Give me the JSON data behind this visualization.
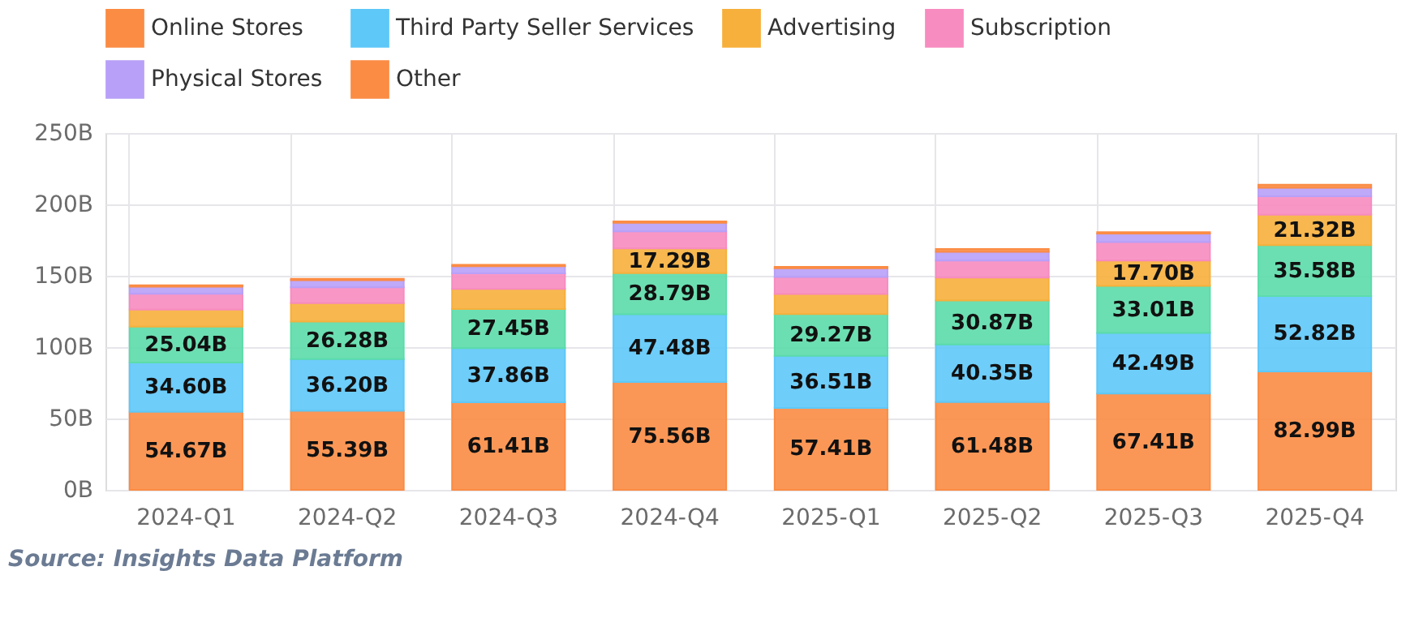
{
  "chart_data": {
    "type": "bar",
    "stacked": true,
    "categories": [
      "2024-Q1",
      "2024-Q2",
      "2024-Q3",
      "2024-Q4",
      "2025-Q1",
      "2025-Q2",
      "2025-Q3",
      "2025-Q4"
    ],
    "series": [
      {
        "name": "Online Stores",
        "color": "#fb8c44",
        "values": [
          54.67,
          55.39,
          61.41,
          75.56,
          57.41,
          61.48,
          67.41,
          82.99
        ],
        "value_labels": [
          "54.67B",
          "55.39B",
          "61.41B",
          "75.56B",
          "57.41B",
          "61.48B",
          "67.41B",
          "82.99B"
        ]
      },
      {
        "name": "Third Party Seller Services",
        "color": "#5ec8f8",
        "values": [
          34.6,
          36.2,
          37.86,
          47.48,
          36.51,
          40.35,
          42.49,
          52.82
        ],
        "value_labels": [
          "34.60B",
          "36.20B",
          "37.86B",
          "47.48B",
          "36.51B",
          "40.35B",
          "42.49B",
          "52.82B"
        ]
      },
      {
        "color": "#5cdcaa",
        "values": [
          25.04,
          26.28,
          27.45,
          28.79,
          29.27,
          30.87,
          33.01,
          35.58
        ],
        "value_labels": [
          "25.04B",
          "26.28B",
          "27.45B",
          "28.79B",
          "29.27B",
          "30.87B",
          "33.01B",
          "35.58B"
        ]
      },
      {
        "name": "Advertising",
        "color": "#f7b03c",
        "values": [
          12,
          13,
          14,
          17.29,
          14,
          16,
          17.7,
          21.32
        ],
        "value_labels": [
          null,
          null,
          null,
          "17.29B",
          null,
          null,
          "17.70B",
          "21.32B"
        ]
      },
      {
        "name": "Subscription",
        "color": "#f78cc0",
        "values": [
          11,
          11,
          11,
          12,
          12,
          12,
          13,
          13
        ]
      },
      {
        "name": "Physical Stores",
        "color": "#b8a0f8",
        "values": [
          5,
          5,
          5,
          6,
          6,
          6,
          6,
          6
        ]
      },
      {
        "name": "Other",
        "color": "#fb8c44",
        "values": [
          1,
          1,
          1,
          1,
          1,
          2,
          1,
          2
        ]
      }
    ],
    "ylim": [
      0,
      250
    ],
    "yticks": [
      {
        "value": 0,
        "label": "0B"
      },
      {
        "value": 50,
        "label": "50B"
      },
      {
        "value": 100,
        "label": "100B"
      },
      {
        "value": 150,
        "label": "150B"
      },
      {
        "value": 200,
        "label": "200B"
      },
      {
        "value": 250,
        "label": "250B"
      }
    ],
    "grid": true,
    "legend": "top",
    "annotations": [
      "Source: Insights Data Platform"
    ]
  }
}
